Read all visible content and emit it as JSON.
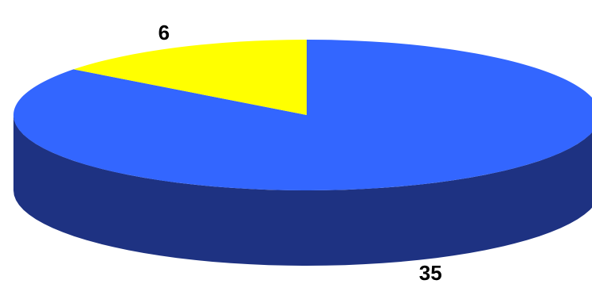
{
  "chart_data": {
    "type": "pie",
    "style": "3d",
    "title": "",
    "categories": [
      "",
      ""
    ],
    "values": [
      35,
      6
    ],
    "data_labels": [
      "35",
      "6"
    ],
    "colors": [
      "#3366ff",
      "#ffff00"
    ],
    "side_colors": [
      "#1e3282",
      "#b3b300"
    ],
    "legend": "none",
    "start_angle": "12 o'clock",
    "direction": "clockwise"
  }
}
